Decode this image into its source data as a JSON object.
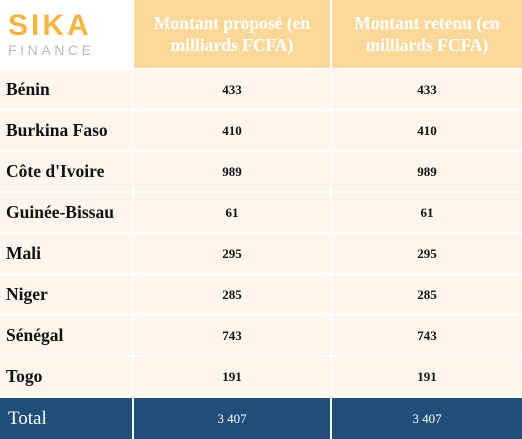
{
  "logo": {
    "main": "SIKA",
    "sub": "FINANCE"
  },
  "header": {
    "col2": "Montant proposé (en milliards FCFA)",
    "col3": "Montant retenu (en milliards FCFA)"
  },
  "rows": [
    {
      "country": "Bénin",
      "proposed": "433",
      "retained": "433"
    },
    {
      "country": "Burkina Faso",
      "proposed": "410",
      "retained": "410"
    },
    {
      "country": "Côte d'Ivoire",
      "proposed": "989",
      "retained": "989"
    },
    {
      "country": "Guinée-Bissau",
      "proposed": "61",
      "retained": "61"
    },
    {
      "country": "Mali",
      "proposed": "295",
      "retained": "295"
    },
    {
      "country": "Niger",
      "proposed": "285",
      "retained": "285"
    },
    {
      "country": "Sénégal",
      "proposed": "743",
      "retained": "743"
    },
    {
      "country": "Togo",
      "proposed": "191",
      "retained": "191"
    }
  ],
  "total": {
    "label": "Total",
    "proposed": "3 407",
    "retained": "3 407"
  },
  "colors": {
    "header_bg": "#fbd89a",
    "row_bg": "#fef6ec",
    "total_bg": "#1f4e79",
    "logo_accent": "#f6b443",
    "logo_grey": "#b9b9b9"
  }
}
